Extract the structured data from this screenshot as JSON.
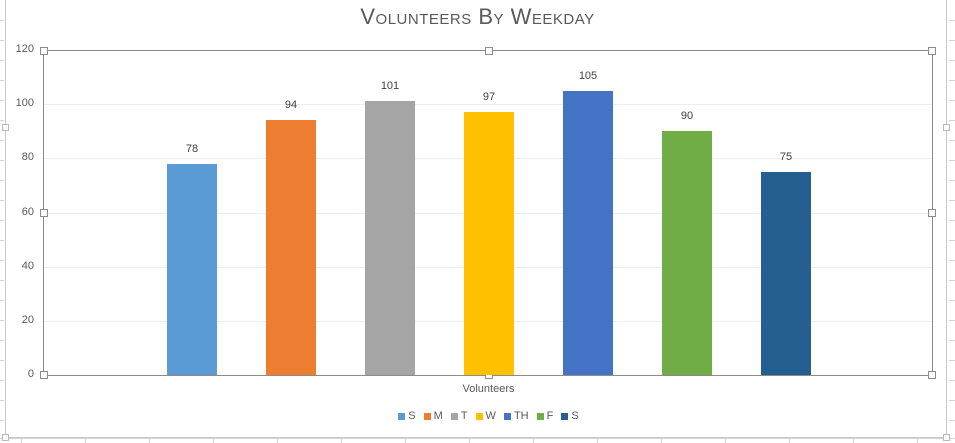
{
  "chart_data": {
    "type": "bar",
    "title": "Volunteers By Weekday",
    "xlabel": "Volunteers",
    "ylabel": "",
    "categories": [
      "S",
      "M",
      "T",
      "W",
      "TH",
      "F",
      "S"
    ],
    "values": [
      78,
      94,
      101,
      97,
      105,
      90,
      75
    ],
    "colors": [
      "#5b9bd5",
      "#ed7d31",
      "#a5a5a5",
      "#ffc000",
      "#4472c4",
      "#70ad47",
      "#255e91"
    ],
    "ylim": [
      0,
      120
    ],
    "yticks": [
      0,
      20,
      40,
      60,
      80,
      100,
      120
    ],
    "grid": true,
    "legend_position": "bottom",
    "data_labels": true
  },
  "chart": {
    "title": "Volunteers By Weekday",
    "x_axis_label": "Volunteers",
    "y_ticks": [
      "120",
      "100",
      "80",
      "60",
      "40",
      "20",
      "0"
    ],
    "bars": [
      {
        "label": "78",
        "value": 78,
        "color": "#5b9bd5"
      },
      {
        "label": "94",
        "value": 94,
        "color": "#ed7d31"
      },
      {
        "label": "101",
        "value": 101,
        "color": "#a5a5a5"
      },
      {
        "label": "97",
        "value": 97,
        "color": "#ffc000"
      },
      {
        "label": "105",
        "value": 105,
        "color": "#4472c4"
      },
      {
        "label": "90",
        "value": 90,
        "color": "#70ad47"
      },
      {
        "label": "75",
        "value": 75,
        "color": "#255e91"
      }
    ],
    "legend": [
      {
        "label": "S",
        "color": "#5b9bd5"
      },
      {
        "label": "M",
        "color": "#ed7d31"
      },
      {
        "label": "T",
        "color": "#a5a5a5"
      },
      {
        "label": "W",
        "color": "#ffc000"
      },
      {
        "label": "TH",
        "color": "#4472c4"
      },
      {
        "label": "F",
        "color": "#70ad47"
      },
      {
        "label": "S",
        "color": "#255e91"
      }
    ]
  }
}
